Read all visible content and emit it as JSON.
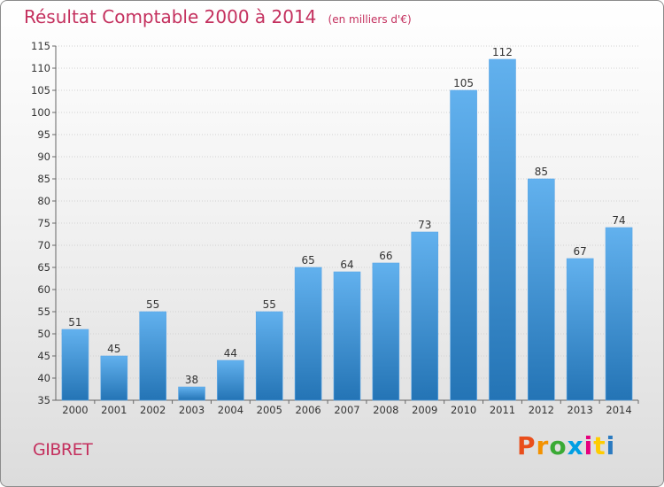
{
  "title": "Résultat Comptable 2000 à 2014",
  "unit_note": "(en milliers d'€)",
  "commune": "GIBRET",
  "logo": {
    "text": "Proxiti",
    "colors": [
      "#e94e1b",
      "#f39200",
      "#3aaa35",
      "#009fe3",
      "#e6007e",
      "#ffcc00",
      "#2a7ac0"
    ]
  },
  "chart_data": {
    "type": "bar",
    "title": "Résultat Comptable 2000 à 2014",
    "xlabel": "",
    "ylabel": "",
    "ylim": [
      35,
      115
    ],
    "yticks": [
      35,
      40,
      45,
      50,
      55,
      60,
      65,
      70,
      75,
      80,
      85,
      90,
      95,
      100,
      105,
      110,
      115
    ],
    "grid": true,
    "categories": [
      "2000",
      "2001",
      "2002",
      "2003",
      "2004",
      "2005",
      "2006",
      "2007",
      "2008",
      "2009",
      "2010",
      "2011",
      "2012",
      "2013",
      "2014"
    ],
    "values": [
      51,
      45,
      55,
      38,
      44,
      55,
      65,
      64,
      66,
      73,
      105,
      112,
      85,
      67,
      74
    ],
    "bar_color": "#3b8fd4"
  }
}
